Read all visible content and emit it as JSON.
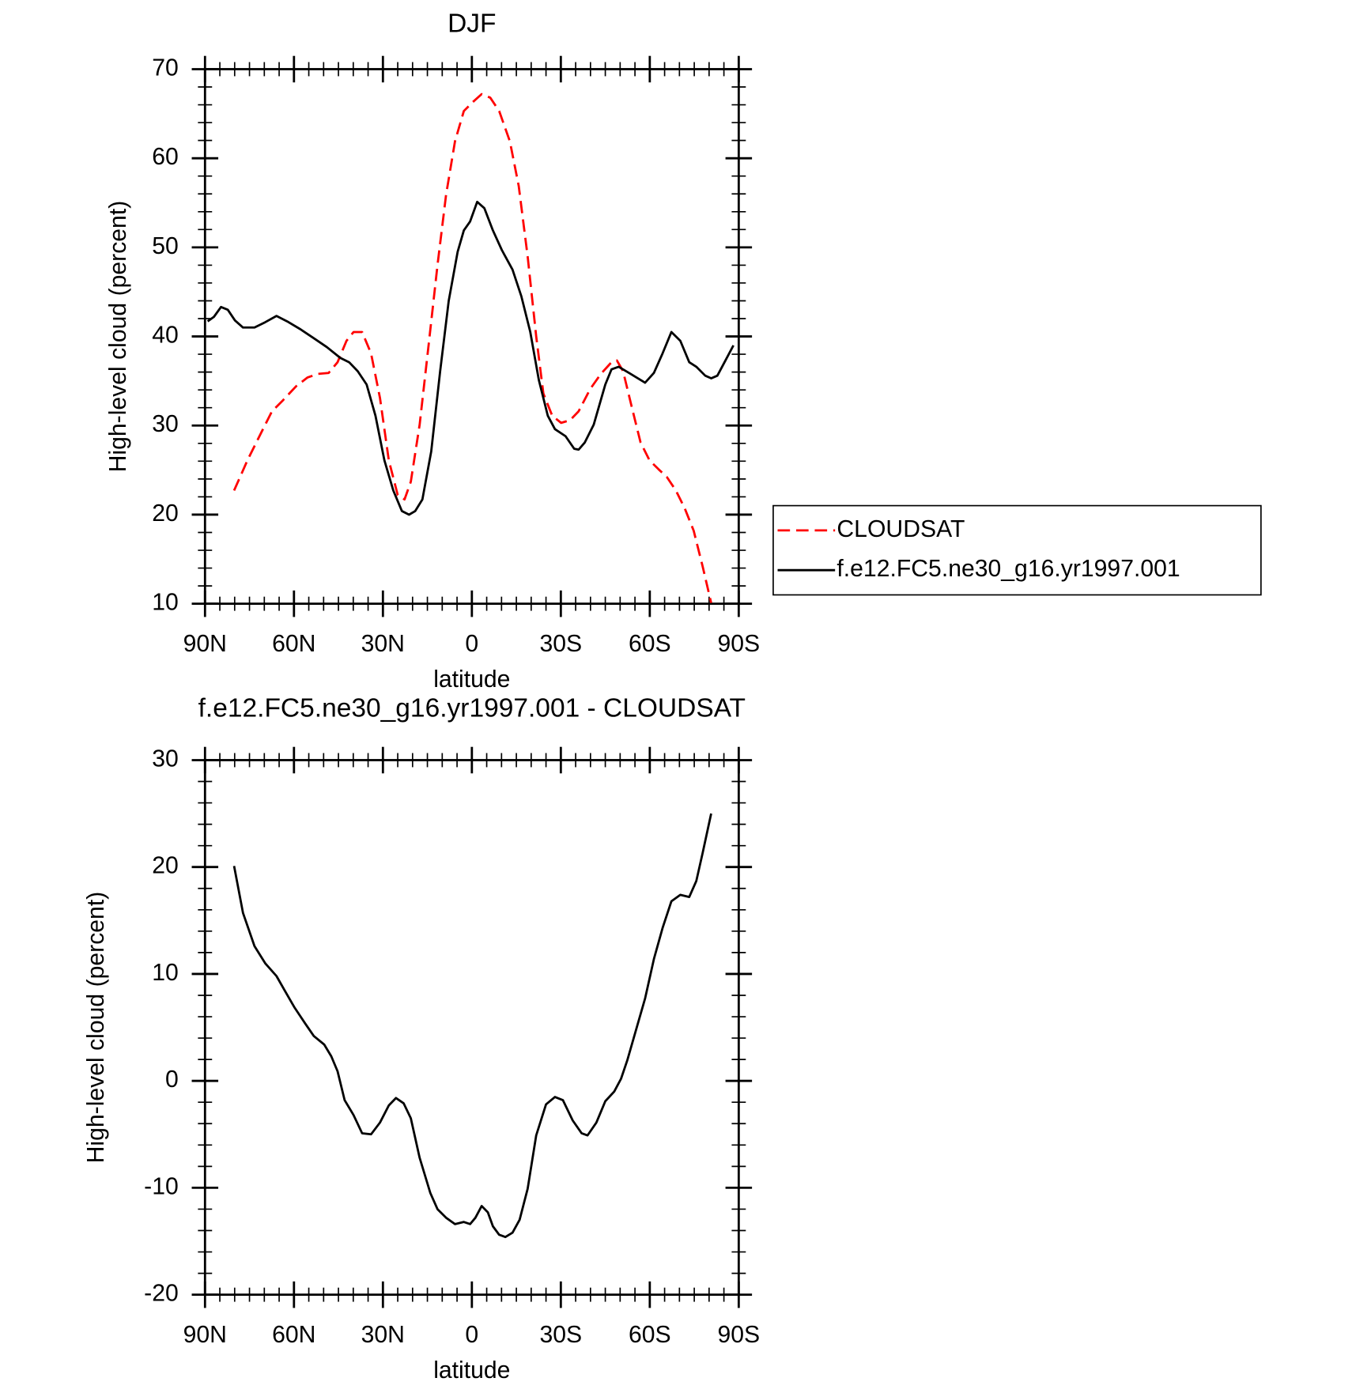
{
  "chart_data": [
    {
      "type": "line",
      "title": "DJF",
      "xlabel": "latitude",
      "ylabel": "High-level cloud (percent)",
      "xlim": [
        90,
        -90
      ],
      "ylim": [
        10,
        70
      ],
      "xticks": [
        {
          "value": 90,
          "label": "90N"
        },
        {
          "value": 60,
          "label": "60N"
        },
        {
          "value": 30,
          "label": "30N"
        },
        0,
        {
          "value": -30,
          "label": "30S"
        },
        {
          "value": -60,
          "label": "60S"
        },
        {
          "value": -90,
          "label": "90S"
        }
      ],
      "yticks": [
        10,
        20,
        30,
        40,
        50,
        60,
        70
      ],
      "legend": "right",
      "series": [
        {
          "name": "CLOUDSAT",
          "color": "#ff0000",
          "style": "dashed",
          "x": [
            80.2,
            75.7,
            71.2,
            67.4,
            63.8,
            59.3,
            55.4,
            51.9,
            48.3,
            45.3,
            42.3,
            39.9,
            37.0,
            34.0,
            31.0,
            28.0,
            25.0,
            22.7,
            20.6,
            17.6,
            14.6,
            11.6,
            8.7,
            5.7,
            2.7,
            -0.3,
            -3.3,
            -6.2,
            -9.2,
            -12.8,
            -15.8,
            -18.8,
            -21.7,
            -24.1,
            -27.1,
            -30.1,
            -33.1,
            -36.0,
            -39.9,
            -43.5,
            -47.1,
            -48.9,
            -51.0,
            -53.9,
            -56.9,
            -59.9,
            -62.9,
            -65.8,
            -68.8,
            -71.8,
            -74.8,
            -77.8,
            -80.7
          ],
          "values": [
            22.7,
            26.1,
            29.1,
            31.6,
            32.8,
            34.4,
            35.4,
            35.8,
            35.9,
            37.1,
            39.5,
            40.5,
            40.5,
            38.1,
            33.1,
            26.1,
            22.2,
            21.7,
            23.7,
            30.1,
            39.0,
            48.0,
            55.9,
            61.9,
            65.3,
            66.3,
            67.2,
            66.8,
            65.3,
            61.9,
            56.9,
            49.0,
            40.0,
            33.6,
            31.1,
            30.3,
            30.6,
            31.6,
            34.1,
            35.8,
            37.1,
            37.3,
            36.1,
            32.1,
            28.1,
            26.1,
            25.1,
            24.2,
            22.7,
            20.7,
            18.2,
            14.2,
            10.1
          ]
        },
        {
          "name": "f.e12.FC5.ne30_g16.yr1997.001",
          "color": "#000000",
          "style": "solid",
          "x": [
            89.1,
            87.0,
            84.6,
            82.3,
            79.9,
            77.2,
            73.3,
            69.7,
            65.9,
            62.3,
            57.8,
            53.3,
            48.9,
            44.4,
            41.4,
            38.5,
            35.5,
            32.5,
            29.5,
            26.5,
            23.6,
            21.2,
            19.1,
            16.7,
            13.7,
            10.7,
            7.8,
            4.8,
            2.7,
            0.6,
            -1.8,
            -4.2,
            -7.1,
            -10.1,
            -13.7,
            -16.7,
            -19.7,
            -22.6,
            -25.6,
            -28.0,
            -31.6,
            -34.5,
            -36.0,
            -38.1,
            -41.1,
            -45.0,
            -47.1,
            -49.5,
            -53.0,
            -56.0,
            -58.4,
            -61.4,
            -64.3,
            -67.3,
            -70.3,
            -73.3,
            -75.7,
            -78.7,
            -80.7,
            -82.8,
            -85.2,
            -88.2
          ],
          "values": [
            41.7,
            42.2,
            43.3,
            43.0,
            41.8,
            41.0,
            41.0,
            41.6,
            42.3,
            41.7,
            40.8,
            39.8,
            38.8,
            37.6,
            37.1,
            36.1,
            34.6,
            31.1,
            26.1,
            22.7,
            20.4,
            20.0,
            20.4,
            21.7,
            27.1,
            36.1,
            44.0,
            49.5,
            51.9,
            52.9,
            55.1,
            54.4,
            51.9,
            49.7,
            47.5,
            44.5,
            40.5,
            35.1,
            31.1,
            29.6,
            28.8,
            27.4,
            27.3,
            28.1,
            30.1,
            34.6,
            36.3,
            36.6,
            35.9,
            35.3,
            34.8,
            35.9,
            38.1,
            40.5,
            39.5,
            37.1,
            36.6,
            35.6,
            35.3,
            35.6,
            37.1,
            39.0
          ]
        }
      ]
    },
    {
      "type": "line",
      "title": "f.e12.FC5.ne30_g16.yr1997.001 - CLOUDSAT",
      "xlabel": "latitude",
      "ylabel": "High-level cloud (percent)",
      "xlim": [
        90,
        -90
      ],
      "ylim": [
        -20,
        30
      ],
      "xticks": [
        {
          "value": 90,
          "label": "90N"
        },
        {
          "value": 60,
          "label": "60N"
        },
        {
          "value": 30,
          "label": "30N"
        },
        0,
        {
          "value": -30,
          "label": "30S"
        },
        {
          "value": -60,
          "label": "60S"
        },
        {
          "value": -90,
          "label": "90S"
        }
      ],
      "yticks": [
        -20,
        -10,
        0,
        10,
        20,
        30
      ],
      "series": [
        {
          "color": "#000000",
          "style": "solid",
          "x": [
            80.2,
            77.2,
            73.3,
            69.7,
            65.9,
            63.2,
            59.9,
            56.3,
            53.3,
            49.8,
            47.4,
            45.3,
            42.9,
            39.9,
            37.0,
            34.0,
            31.0,
            28.0,
            25.6,
            23.0,
            20.6,
            17.6,
            14.0,
            11.6,
            8.7,
            5.7,
            2.7,
            0.6,
            -1.2,
            -3.3,
            -5.4,
            -7.1,
            -9.2,
            -11.3,
            -13.7,
            -16.1,
            -18.8,
            -21.7,
            -25.0,
            -28.0,
            -30.7,
            -34.0,
            -37.0,
            -39.0,
            -42.0,
            -45.0,
            -48.0,
            -50.3,
            -52.4,
            -55.4,
            -58.4,
            -61.4,
            -64.3,
            -67.3,
            -70.3,
            -73.3,
            -75.7,
            -77.8,
            -80.7
          ],
          "values": [
            20.1,
            15.7,
            12.6,
            11.0,
            9.8,
            8.5,
            6.9,
            5.4,
            4.2,
            3.4,
            2.3,
            0.9,
            -1.8,
            -3.2,
            -4.9,
            -5.0,
            -3.9,
            -2.3,
            -1.6,
            -2.1,
            -3.5,
            -7.2,
            -10.5,
            -12.0,
            -12.8,
            -13.4,
            -13.2,
            -13.4,
            -12.8,
            -11.7,
            -12.3,
            -13.6,
            -14.4,
            -14.6,
            -14.2,
            -13.0,
            -10.1,
            -5.1,
            -2.2,
            -1.5,
            -1.8,
            -3.7,
            -4.9,
            -5.1,
            -3.9,
            -1.9,
            -1.0,
            0.2,
            1.9,
            4.8,
            7.7,
            11.4,
            14.3,
            16.8,
            17.4,
            17.2,
            18.7,
            21.3,
            25.0
          ]
        }
      ]
    }
  ]
}
